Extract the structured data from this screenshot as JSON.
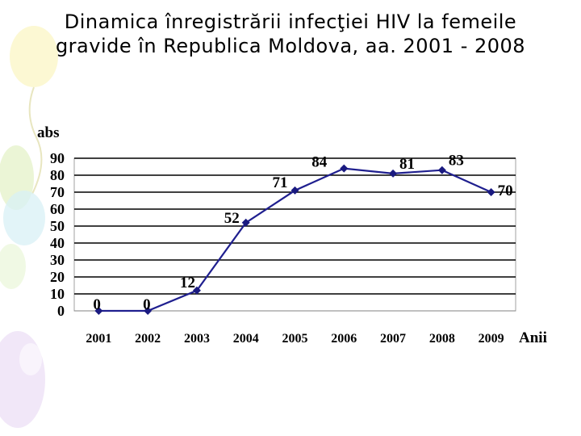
{
  "slide": {
    "title": "Dinamica înregistrării infecţiei HIV la femeile gravide în Republica Moldova, aa. 2001 - 2008"
  },
  "chart_data": {
    "type": "line",
    "title": "",
    "xlabel": "Anii",
    "ylabel": "abs",
    "categories": [
      "2001",
      "2002",
      "2003",
      "2004",
      "2005",
      "2006",
      "2007",
      "2008",
      "2009"
    ],
    "series": [
      {
        "values": [
          0,
          0,
          12,
          52,
          71,
          84,
          81,
          83,
          70
        ],
        "data_labels": [
          "0",
          "0",
          "12",
          "52",
          "71",
          "84",
          "81",
          "83",
          "70"
        ]
      }
    ],
    "yticks": [
      "0",
      "10",
      "20",
      "30",
      "40",
      "50",
      "60",
      "70",
      "80",
      "90"
    ],
    "ylim": [
      0,
      90
    ],
    "grid": true,
    "legend": "none",
    "colors": {
      "line": "#1f1f8f",
      "marker": "#1a1a80",
      "grid": "#000000",
      "text": "#000000"
    }
  }
}
